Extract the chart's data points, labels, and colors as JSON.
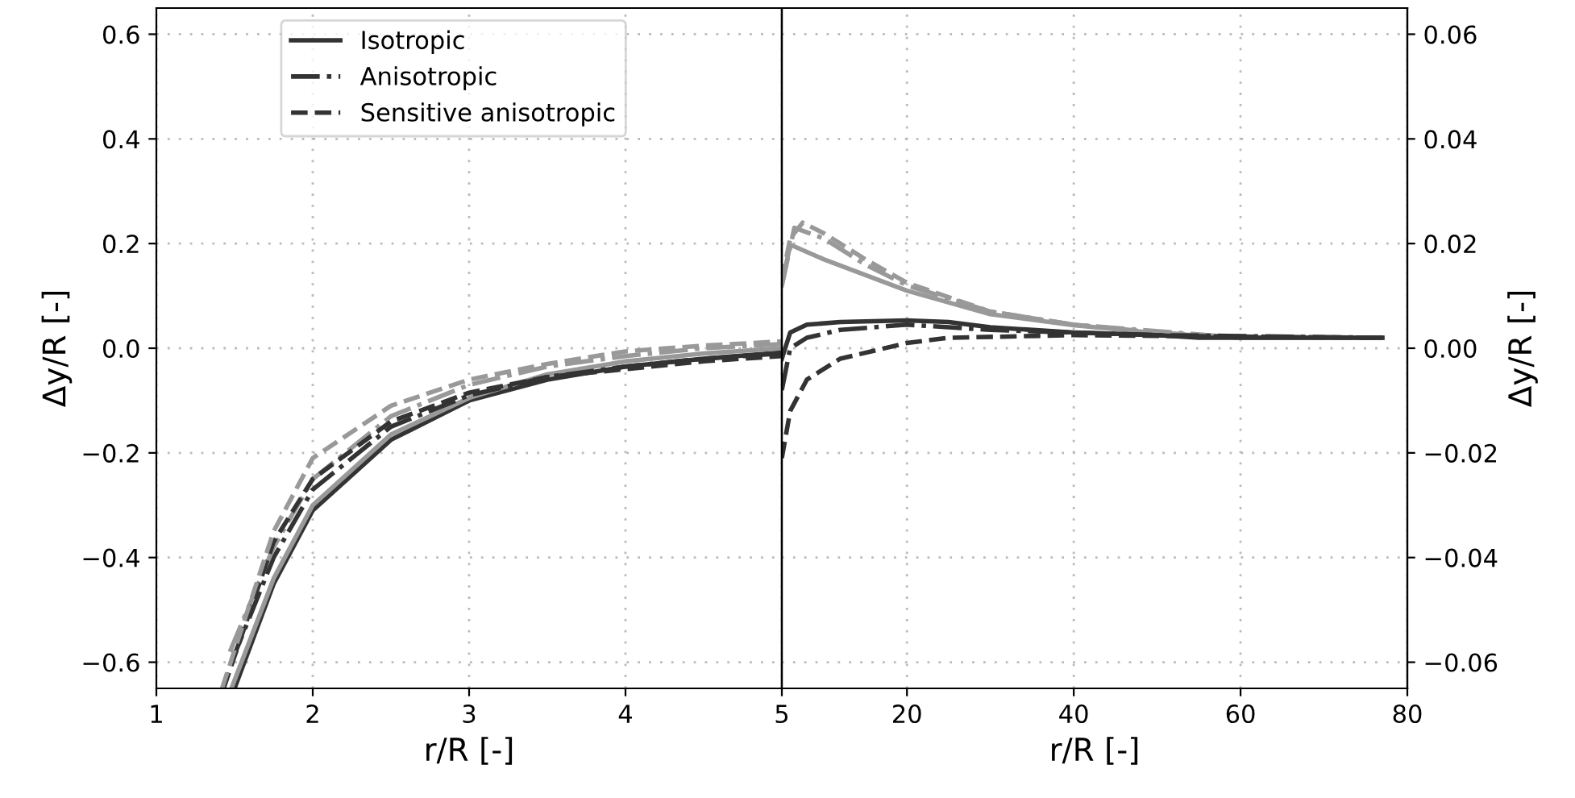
{
  "chart_data": [
    {
      "type": "line",
      "xlabel": "r/R [-]",
      "ylabel": "Δy/R [-]",
      "xlim": [
        1,
        5
      ],
      "xticks": [
        1,
        2,
        3,
        4,
        5
      ],
      "ylim": [
        -0.65,
        0.65
      ],
      "yticks": [
        {
          "value": -0.6,
          "label": "−0.6"
        },
        {
          "value": -0.4,
          "label": "−0.4"
        },
        {
          "value": -0.2,
          "label": "−0.2"
        },
        {
          "value": 0,
          "label": "0.0"
        },
        {
          "value": 0.2,
          "label": "0.2"
        },
        {
          "value": 0.4,
          "label": "0.4"
        },
        {
          "value": 0.6,
          "label": "0.6"
        }
      ],
      "grid": true,
      "legend": "top",
      "series": [
        {
          "name": "Isotropic",
          "color": "#333333",
          "line_style": "solid",
          "x": [
            1.5,
            1.75,
            2,
            2.5,
            3,
            3.5,
            4,
            4.5,
            5
          ],
          "values": [
            -0.65,
            -0.45,
            -0.31,
            -0.175,
            -0.1,
            -0.06,
            -0.035,
            -0.02,
            -0.008
          ]
        },
        {
          "color": "#999999",
          "line_style": "solid",
          "x": [
            1.48,
            1.75,
            2,
            2.5,
            3,
            3.5,
            4,
            4.5,
            5
          ],
          "values": [
            -0.65,
            -0.44,
            -0.3,
            -0.165,
            -0.095,
            -0.05,
            -0.025,
            -0.01,
            0.0
          ]
        },
        {
          "name": "Anisotropic",
          "color": "#333333",
          "line_style": "dashdot",
          "x": [
            1.48,
            1.75,
            2,
            2.5,
            3,
            3.5,
            4,
            4.5,
            5
          ],
          "values": [
            -0.6,
            -0.4,
            -0.27,
            -0.15,
            -0.09,
            -0.055,
            -0.035,
            -0.02,
            -0.01
          ]
        },
        {
          "color": "#999999",
          "line_style": "dashdot",
          "x": [
            1.47,
            1.75,
            2,
            2.5,
            3,
            3.5,
            4,
            4.5,
            5
          ],
          "values": [
            -0.58,
            -0.38,
            -0.25,
            -0.13,
            -0.07,
            -0.035,
            -0.015,
            0.0,
            0.008
          ]
        },
        {
          "name": "Sensitive anisotropic",
          "color": "#333333",
          "line_style": "dashed",
          "x": [
            1.43,
            1.75,
            2,
            2.5,
            3,
            3.5,
            4,
            4.5,
            5
          ],
          "values": [
            -0.65,
            -0.37,
            -0.25,
            -0.14,
            -0.085,
            -0.055,
            -0.04,
            -0.025,
            -0.015
          ]
        },
        {
          "color": "#999999",
          "line_style": "dashed",
          "x": [
            1.42,
            1.75,
            2,
            2.5,
            3,
            3.5,
            4,
            4.5,
            5
          ],
          "values": [
            -0.65,
            -0.35,
            -0.21,
            -0.11,
            -0.06,
            -0.03,
            -0.006,
            0.005,
            0.013
          ]
        }
      ]
    },
    {
      "type": "line",
      "xlabel": "r/R [-]",
      "y2label": "Δy/R [-]",
      "xlim": [
        5,
        80
      ],
      "xticks": [
        20,
        40,
        60,
        80
      ],
      "y2lim": [
        -0.065,
        0.065
      ],
      "y2ticks": [
        {
          "value": -0.06,
          "label": "−0.06"
        },
        {
          "value": -0.04,
          "label": "−0.04"
        },
        {
          "value": -0.02,
          "label": "−0.02"
        },
        {
          "value": 0,
          "label": "0.00"
        },
        {
          "value": 0.02,
          "label": "0.02"
        },
        {
          "value": 0.04,
          "label": "0.04"
        },
        {
          "value": 0.06,
          "label": "0.06"
        }
      ],
      "grid": true,
      "series": [
        {
          "axis": "y2",
          "color": "#999999",
          "line_style": "solid",
          "x": [
            5,
            6,
            10,
            20,
            30,
            40,
            50,
            60,
            77
          ],
          "values": [
            0.012,
            0.0198,
            0.017,
            0.011,
            0.0065,
            0.0044,
            0.0029,
            0.002,
            0.002
          ]
        },
        {
          "axis": "y2",
          "color": "#999999",
          "line_style": "dashdot",
          "x": [
            5,
            6.5,
            10,
            15,
            20,
            30,
            40,
            60,
            77
          ],
          "values": [
            0.012,
            0.023,
            0.021,
            0.016,
            0.012,
            0.007,
            0.0045,
            0.002,
            0.002
          ]
        },
        {
          "axis": "y2",
          "color": "#999999",
          "line_style": "dashed",
          "x": [
            5,
            6,
            7.5,
            10,
            15,
            20,
            30,
            40,
            50,
            60,
            77
          ],
          "values": [
            0.013,
            0.021,
            0.024,
            0.022,
            0.017,
            0.0125,
            0.007,
            0.0045,
            0.003,
            0.002,
            0.002
          ]
        },
        {
          "axis": "y2",
          "color": "#333333",
          "line_style": "solid",
          "x": [
            5,
            6,
            8,
            12,
            20,
            25,
            30,
            40,
            50,
            55,
            77
          ],
          "values": [
            -0.002,
            0.003,
            0.0045,
            0.005,
            0.0053,
            0.005,
            0.004,
            0.003,
            0.0025,
            0.002,
            0.002
          ]
        },
        {
          "axis": "y2",
          "color": "#333333",
          "line_style": "dashdot",
          "x": [
            5,
            6,
            8,
            12,
            20,
            30,
            40,
            50,
            77
          ],
          "values": [
            -0.008,
            0.0,
            0.002,
            0.0035,
            0.0045,
            0.0035,
            0.003,
            0.0025,
            0.002
          ]
        },
        {
          "axis": "y2",
          "color": "#333333",
          "line_style": "dashed",
          "x": [
            5,
            6,
            8,
            12,
            20,
            25,
            40,
            77
          ],
          "values": [
            -0.021,
            -0.012,
            -0.006,
            -0.002,
            0.001,
            0.002,
            0.0025,
            0.002
          ]
        }
      ]
    }
  ]
}
